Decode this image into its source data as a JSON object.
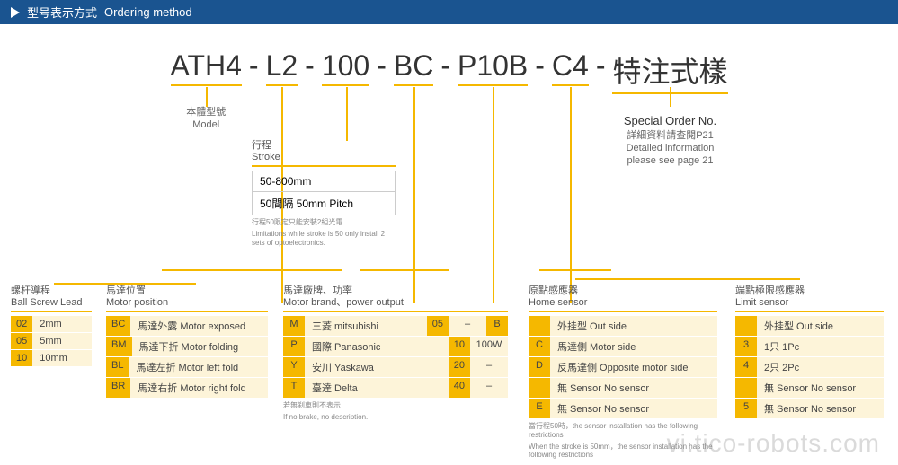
{
  "header": {
    "label_cn": "型号表示方式",
    "label_en": "Ordering method"
  },
  "code": {
    "segs": [
      "ATH4",
      "L2",
      "100",
      "BC",
      "P10B",
      "C4",
      "特注式樣"
    ],
    "sep": "-"
  },
  "model_label": {
    "cn": "本體型號",
    "en": "Model"
  },
  "special": {
    "en": "Special Order No.",
    "cn": "詳細資料請查閱P21",
    "en2": "Detailed information",
    "en3": "please see page 21"
  },
  "stroke": {
    "title_cn": "行程",
    "title_en": "Stroke",
    "row1": "50-800mm",
    "row2": "50間隔 50mm Pitch",
    "note_cn": "行程50限定只能安裝2組光電",
    "note_en": "Limitations while stroke is 50 only install 2 sets of optoelectronics."
  },
  "lead": {
    "title_cn": "螺杆導程",
    "title_en": "Ball Screw Lead",
    "rows": [
      {
        "code": "02",
        "text": "2mm"
      },
      {
        "code": "05",
        "text": "5mm"
      },
      {
        "code": "10",
        "text": "10mm"
      }
    ]
  },
  "motorpos": {
    "title_cn": "馬達位置",
    "title_en": "Motor position",
    "rows": [
      {
        "code": "BC",
        "text": "馬達外露 Motor exposed"
      },
      {
        "code": "BM",
        "text": "馬達下折 Motor folding"
      },
      {
        "code": "BL",
        "text": "馬達左折 Motor left fold"
      },
      {
        "code": "BR",
        "text": "馬達右折 Motor right fold"
      }
    ]
  },
  "motorbrand": {
    "title_cn": "馬達廠牌、功率",
    "title_en": "Motor brand、power output",
    "rows": [
      {
        "c1": "M",
        "t1": "三菱 mitsubishi",
        "c2": "05",
        "t2": "–",
        "c3": "B"
      },
      {
        "c1": "P",
        "t1": "國際 Panasonic",
        "c2": "10",
        "t2": "100W",
        "c3": ""
      },
      {
        "c1": "Y",
        "t1": "安川 Yaskawa",
        "c2": "20",
        "t2": "–",
        "c3": ""
      },
      {
        "c1": "T",
        "t1": "臺達 Delta",
        "c2": "40",
        "t2": "–",
        "c3": ""
      }
    ],
    "note_cn": "若無刹車則不表示",
    "note_en": "If no brake, no description."
  },
  "home": {
    "title_cn": "原點感應器",
    "title_en": "Home sensor",
    "rows": [
      {
        "code": "",
        "text": "外挂型 Out side"
      },
      {
        "code": "C",
        "text": "馬達側 Motor side"
      },
      {
        "code": "D",
        "text": "反馬達側 Opposite motor side"
      },
      {
        "code": "",
        "text": "無 Sensor No sensor"
      },
      {
        "code": "E",
        "text": "無 Sensor No sensor"
      }
    ],
    "note1": "當行程50時，the sensor installation has the following restrictions",
    "note2": "When the stroke is 50mm，the sensor installation has the following restrictions"
  },
  "limit": {
    "title_cn": "端點極限感應器",
    "title_en": "Limit sensor",
    "rows": [
      {
        "code": "",
        "text": "外挂型 Out side"
      },
      {
        "code": "3",
        "text": "1只 1Pc"
      },
      {
        "code": "4",
        "text": "2只 2Pc"
      },
      {
        "code": "",
        "text": "無 Sensor No sensor"
      },
      {
        "code": "5",
        "text": "無 Sensor No sensor"
      }
    ]
  },
  "watermark": "vi.tico-robots.com",
  "colors": {
    "accent": "#f5b800",
    "header": "#1a5490",
    "pale": "#fdf4d9"
  }
}
